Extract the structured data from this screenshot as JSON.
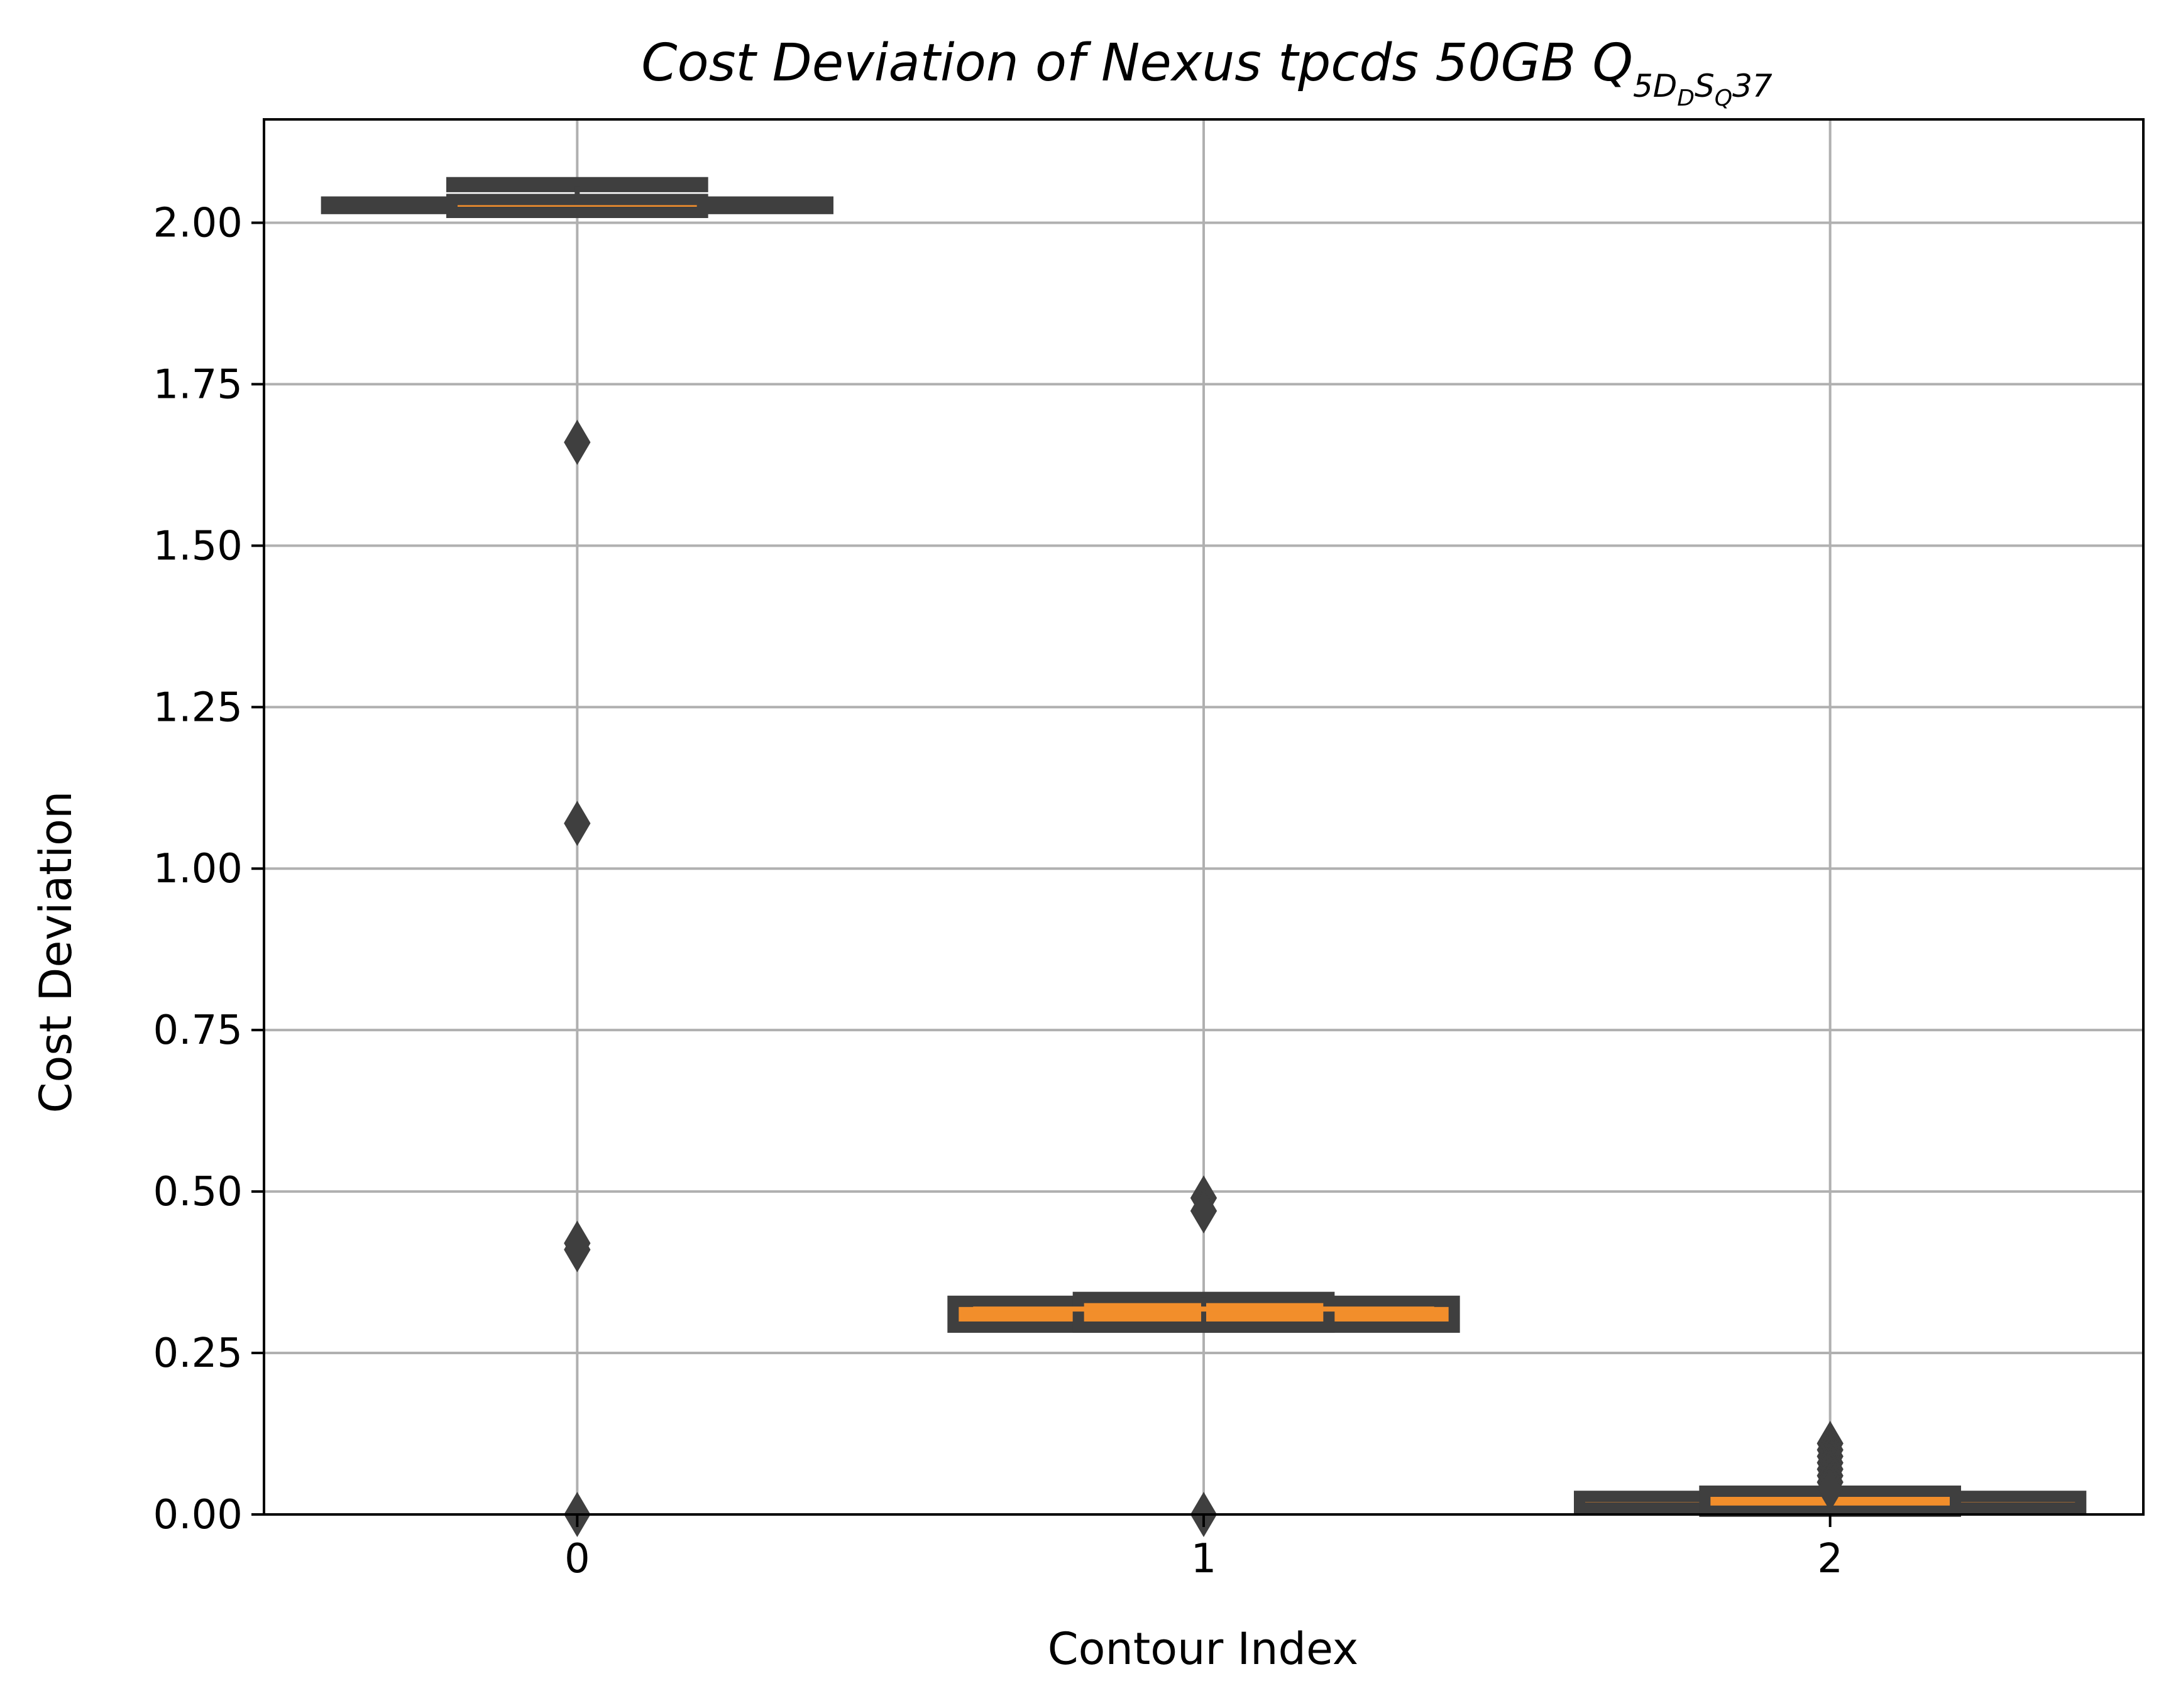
{
  "chart_data": {
    "type": "box",
    "title": {
      "main": "Cost Deviation of Nexus tpcds  50GB  Q",
      "sub_1": "5D",
      "sub_2": "D",
      "sub_3": "S",
      "sub_4": "Q",
      "sub_5": "37"
    },
    "xlabel": "Contour Index",
    "ylabel": "Cost Deviation",
    "categories": [
      "0",
      "1",
      "2"
    ],
    "yticks": [
      "0.00",
      "0.25",
      "0.50",
      "0.75",
      "1.00",
      "1.25",
      "1.50",
      "1.75",
      "2.00"
    ],
    "ylim": [
      0,
      2.16
    ],
    "xlim": [
      -0.5,
      2.5
    ],
    "grid": true,
    "box_color": "#f28e2b",
    "edge_color": "#3f3f3f",
    "grid_color": "#b0b0b0",
    "series": [
      {
        "category": "0",
        "segments": [
          {
            "low": 2.022,
            "high": 2.032,
            "halfwidth": 0.4
          },
          {
            "low": 2.016,
            "high": 2.036,
            "halfwidth": 0.2
          },
          {
            "low": 2.056,
            "high": 2.062,
            "halfwidth": 0.2
          }
        ],
        "whisker": [
          2.03,
          2.056
        ],
        "outliers": [
          1.66,
          1.07,
          0.42,
          0.41,
          0.0
        ]
      },
      {
        "category": "1",
        "segments": [
          {
            "low": 0.29,
            "high": 0.33,
            "halfwidth": 0.4
          },
          {
            "low": 0.29,
            "high": 0.336,
            "halfwidth": 0.2
          }
        ],
        "median": 0.318,
        "whisker": [
          0.29,
          0.336
        ],
        "outliers": [
          0.49,
          0.47,
          0.0
        ]
      },
      {
        "category": "2",
        "segments": [
          {
            "low": 0.01,
            "high": 0.028,
            "halfwidth": 0.4
          },
          {
            "low": 0.005,
            "high": 0.036,
            "halfwidth": 0.2
          }
        ],
        "whisker": [
          0.0,
          0.036
        ],
        "outliers": [
          0.11,
          0.1,
          0.09,
          0.08,
          0.07,
          0.06,
          0.05,
          0.04
        ]
      }
    ]
  }
}
